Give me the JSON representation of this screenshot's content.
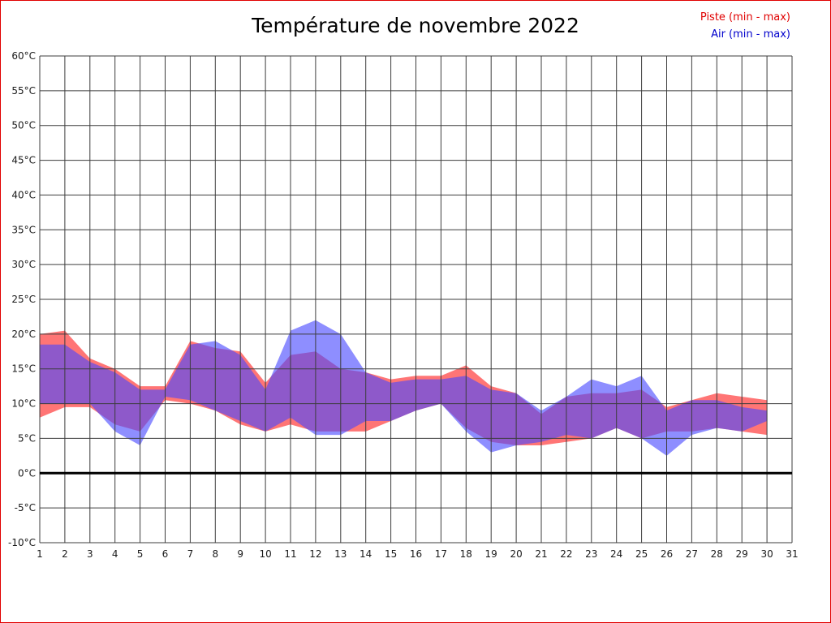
{
  "page": {
    "border_color": "#e00000",
    "background": "#ffffff"
  },
  "header": {
    "title": "Température de novembre 2022",
    "legend": [
      {
        "label": "Piste (min - max)",
        "color": "#e00000"
      },
      {
        "label": "Air (min - max)",
        "color": "#0000cc"
      }
    ]
  },
  "chart_data": {
    "type": "area",
    "title": "Température de novembre 2022",
    "xlabel": "",
    "ylabel": "",
    "y_unit": "°C",
    "xlim": [
      1,
      31
    ],
    "ylim": [
      -10,
      60
    ],
    "ytick_step": 5,
    "grid": true,
    "zero_line": true,
    "legend_position": "top-right",
    "x": [
      1,
      2,
      3,
      4,
      5,
      6,
      7,
      8,
      9,
      10,
      11,
      12,
      13,
      14,
      15,
      16,
      17,
      18,
      19,
      20,
      21,
      22,
      23,
      24,
      25,
      26,
      27,
      28,
      29,
      30
    ],
    "series": [
      {
        "name": "Piste (min - max)",
        "fill": "#ff4040",
        "opacity": 0.72,
        "min": [
          8,
          9.5,
          9.5,
          7,
          6,
          10.5,
          10,
          9,
          7,
          6,
          7,
          6,
          6,
          6,
          7.5,
          9,
          10,
          6.5,
          4.5,
          4,
          4,
          4.5,
          5,
          6.5,
          5,
          6,
          6,
          6.5,
          6,
          5.5
        ],
        "max": [
          20,
          20.5,
          16.5,
          15,
          12.5,
          12.5,
          19,
          18,
          17.5,
          13,
          17,
          17.5,
          15,
          14.5,
          13.5,
          14,
          14,
          15.5,
          12.5,
          11.5,
          8.5,
          11,
          11.5,
          11.5,
          12,
          9.5,
          10.5,
          11.5,
          11,
          10.5
        ]
      },
      {
        "name": "Air (min - max)",
        "fill": "#4848ff",
        "opacity": 0.62,
        "min": [
          10,
          10,
          10,
          6,
          4,
          11,
          10.5,
          9,
          7.5,
          6,
          8,
          5.5,
          5.5,
          7.5,
          7.5,
          9,
          10,
          6,
          3,
          4,
          4.5,
          5.5,
          5,
          6.5,
          5,
          2.5,
          5.5,
          6.5,
          6,
          7.5
        ],
        "max": [
          18.5,
          18.5,
          16,
          14.5,
          12,
          12,
          18.5,
          19,
          17,
          12,
          20.5,
          22,
          20,
          14.5,
          13,
          13.5,
          13.5,
          14,
          12,
          11.5,
          9,
          11,
          13.5,
          12.5,
          14,
          9,
          10.5,
          10.5,
          9.5,
          9
        ]
      }
    ]
  }
}
